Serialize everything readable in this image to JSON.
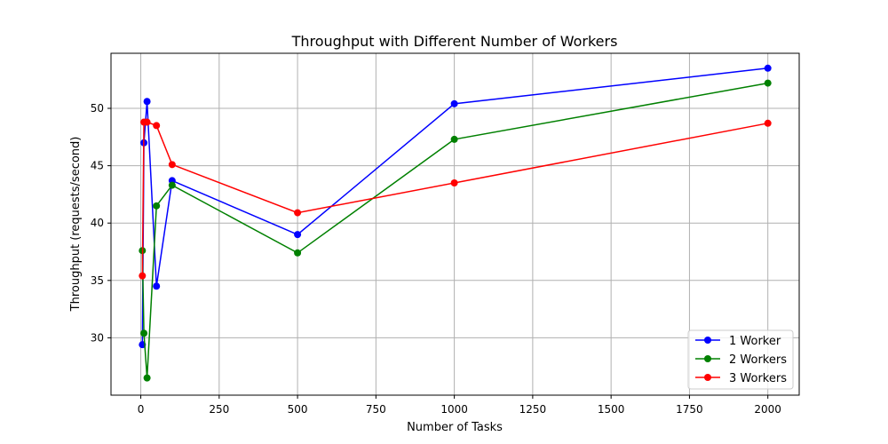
{
  "chart_data": {
    "type": "line",
    "title": "Throughput with Different Number of Workers",
    "xlabel": "Number of Tasks",
    "ylabel": "Throughput (requests/second)",
    "xlim": [
      -95,
      2100
    ],
    "ylim": [
      25.0,
      54.8
    ],
    "xticks": [
      0,
      250,
      500,
      750,
      1000,
      1250,
      1500,
      1750,
      2000
    ],
    "yticks": [
      30,
      35,
      40,
      45,
      50
    ],
    "grid": true,
    "legend_position": "lower right",
    "series": [
      {
        "name": "1 Worker",
        "color": "#0000ff",
        "x": [
          5,
          10,
          20,
          50,
          100,
          500,
          1000,
          2000
        ],
        "y": [
          29.4,
          47.0,
          50.6,
          34.5,
          43.7,
          39.0,
          50.4,
          53.5
        ]
      },
      {
        "name": "2 Workers",
        "color": "#008000",
        "x": [
          5,
          10,
          20,
          50,
          100,
          500,
          1000,
          2000
        ],
        "y": [
          37.6,
          30.4,
          26.5,
          41.5,
          43.3,
          37.4,
          47.3,
          52.2
        ]
      },
      {
        "name": "3 Workers",
        "color": "#ff0000",
        "x": [
          5,
          10,
          20,
          50,
          100,
          500,
          1000,
          2000
        ],
        "y": [
          35.4,
          48.8,
          48.8,
          48.5,
          45.1,
          40.9,
          43.5,
          48.7
        ]
      }
    ]
  }
}
